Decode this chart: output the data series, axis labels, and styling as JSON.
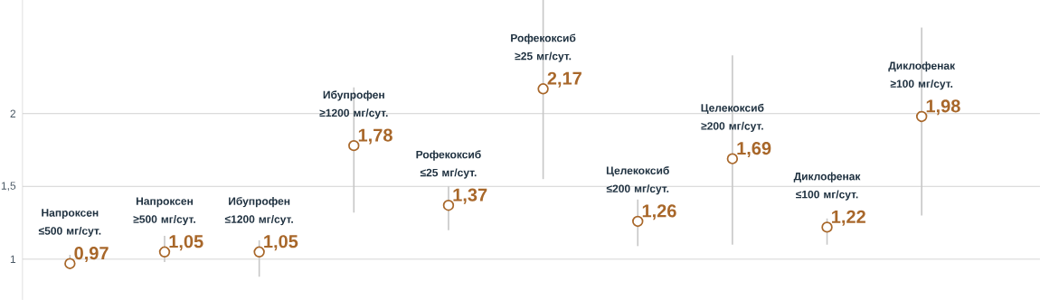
{
  "chart_data": {
    "type": "scatter",
    "categories": [
      "Напроксен ≤500 мг/сут.",
      "Напроксен ≥500 мг/сут.",
      "Ибупрофен ≤1200 мг/сут.",
      "Ибупрофен ≥1200 мг/сут.",
      "Рофекоксиб ≤25 мг/сут.",
      "Рофекоксиб ≥25 мг/сут.",
      "Целекоксиб ≤200 мг/сут.",
      "Целекоксиб ≥200 мг/сут.",
      "Диклофенак ≤100 мг/сут.",
      "Диклофенак ≥100 мг/сут."
    ],
    "values": [
      0.97,
      1.05,
      1.05,
      1.78,
      1.37,
      2.17,
      1.26,
      1.69,
      1.22,
      1.98
    ],
    "value_labels": [
      "0,97",
      "1,05",
      "1,05",
      "1,78",
      "1,37",
      "2,17",
      "1,26",
      "1,69",
      "1,22",
      "1,98"
    ],
    "errors": [
      [
        0.94,
        1.03
      ],
      [
        0.98,
        1.16
      ],
      [
        0.88,
        1.13
      ],
      [
        1.32,
        2.18
      ],
      [
        1.2,
        1.5
      ],
      [
        1.55,
        2.78
      ],
      [
        1.09,
        1.41
      ],
      [
        1.1,
        2.4
      ],
      [
        1.1,
        1.28
      ],
      [
        1.3,
        2.59
      ]
    ],
    "color": "#a8672a",
    "marker": "circle",
    "ylim": [
      0.72,
      2.78
    ],
    "yticks": [
      1,
      {
        "value": 1.5,
        "label": "1,5"
      },
      2
    ],
    "grid": "y"
  }
}
